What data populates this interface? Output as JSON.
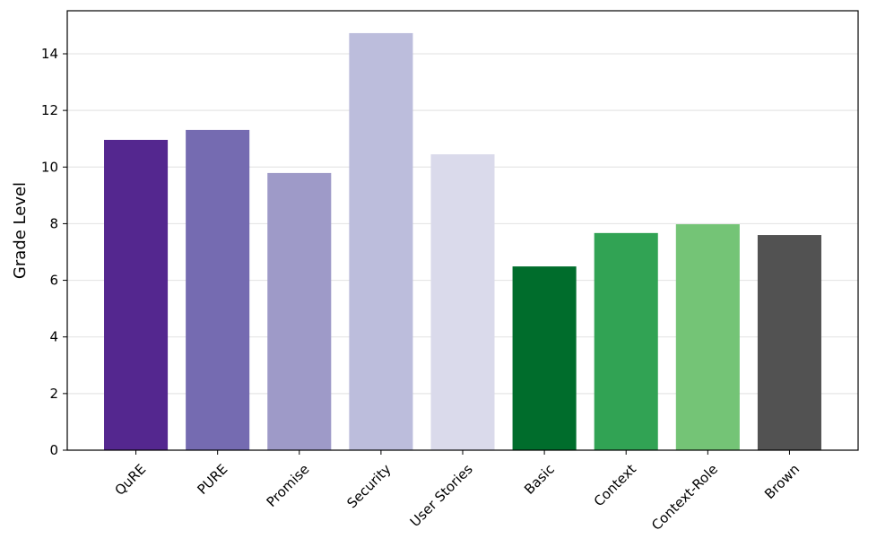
{
  "chart_data": {
    "type": "bar",
    "y_label": "Grade Level",
    "categories": [
      "QuRE",
      "PURE",
      "Promise",
      "Security",
      "User Stories",
      "Basic",
      "Context",
      "Context-Role",
      "Brown"
    ],
    "values": [
      10.96,
      11.31,
      9.79,
      14.73,
      10.45,
      6.49,
      7.67,
      7.98,
      7.6
    ],
    "colors": [
      "#54278f",
      "#756bb1",
      "#9e9ac8",
      "#bcbddc",
      "#dadaeb",
      "#006d2c",
      "#31a354",
      "#74c476",
      "#525252"
    ],
    "ylim": [
      0,
      15.52
    ],
    "yticks": [
      0,
      2,
      4,
      6,
      8,
      10,
      12,
      14
    ],
    "grid": true
  }
}
